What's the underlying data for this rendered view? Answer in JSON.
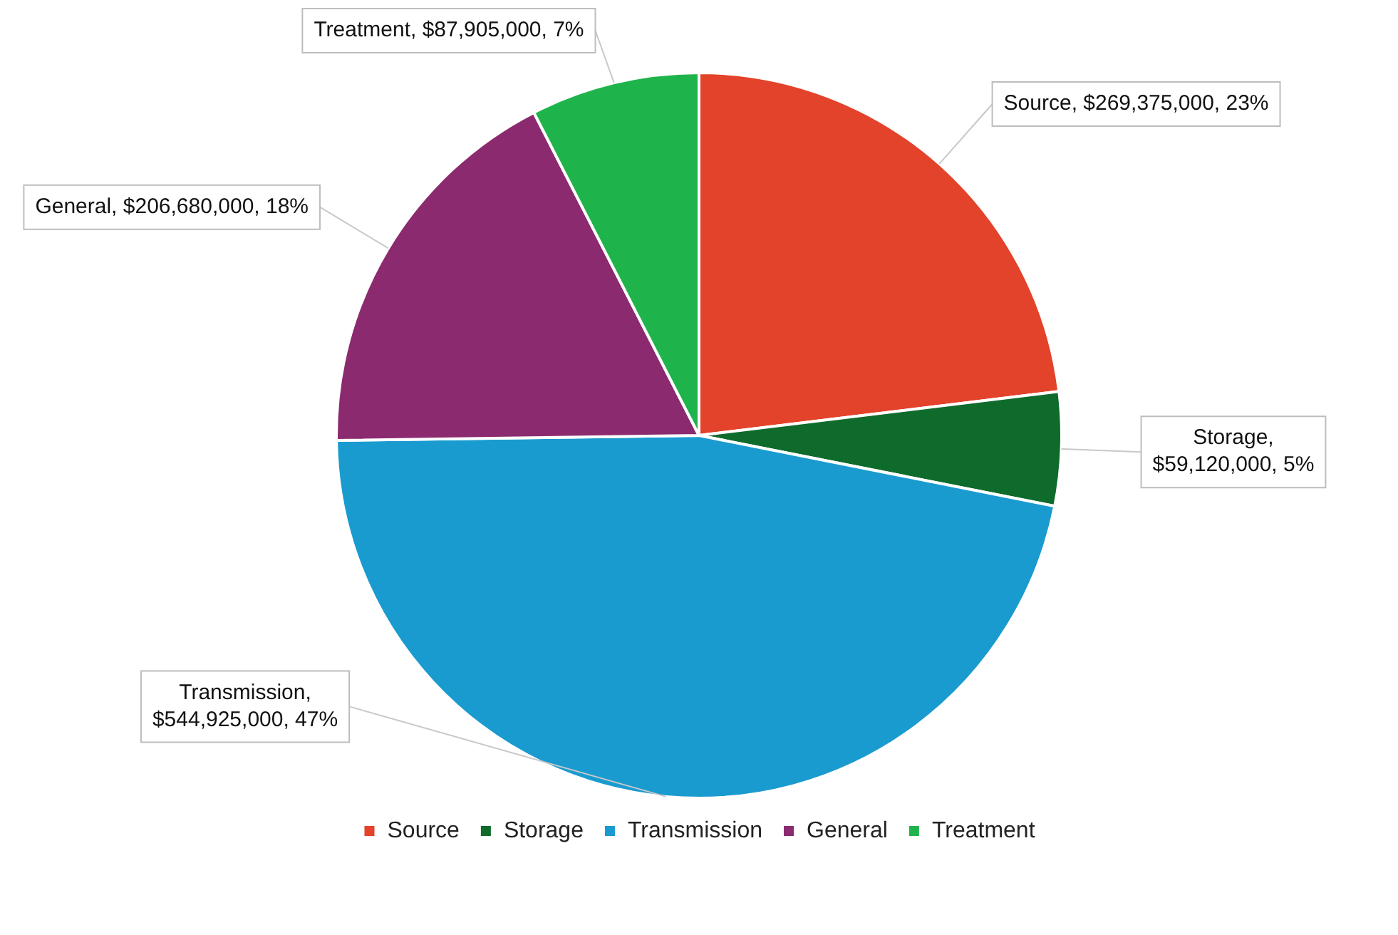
{
  "chart_data": {
    "type": "pie",
    "categories": [
      "Source",
      "Storage",
      "Transmission",
      "General",
      "Treatment"
    ],
    "values": [
      269375000,
      59120000,
      544925000,
      206680000,
      87905000
    ],
    "colors": [
      "#e2432a",
      "#0f6b2c",
      "#1a9bd0",
      "#8b2a6e",
      "#1fb44b"
    ],
    "value_labels": [
      "Source, $269,375,000, 23%",
      "Storage, $59,120,000, 5%",
      "Transmission, $544,925,000, 47%",
      "General, $206,680,000, 18%",
      "Treatment, $87,905,000, 7%"
    ],
    "legend": "bottom"
  }
}
